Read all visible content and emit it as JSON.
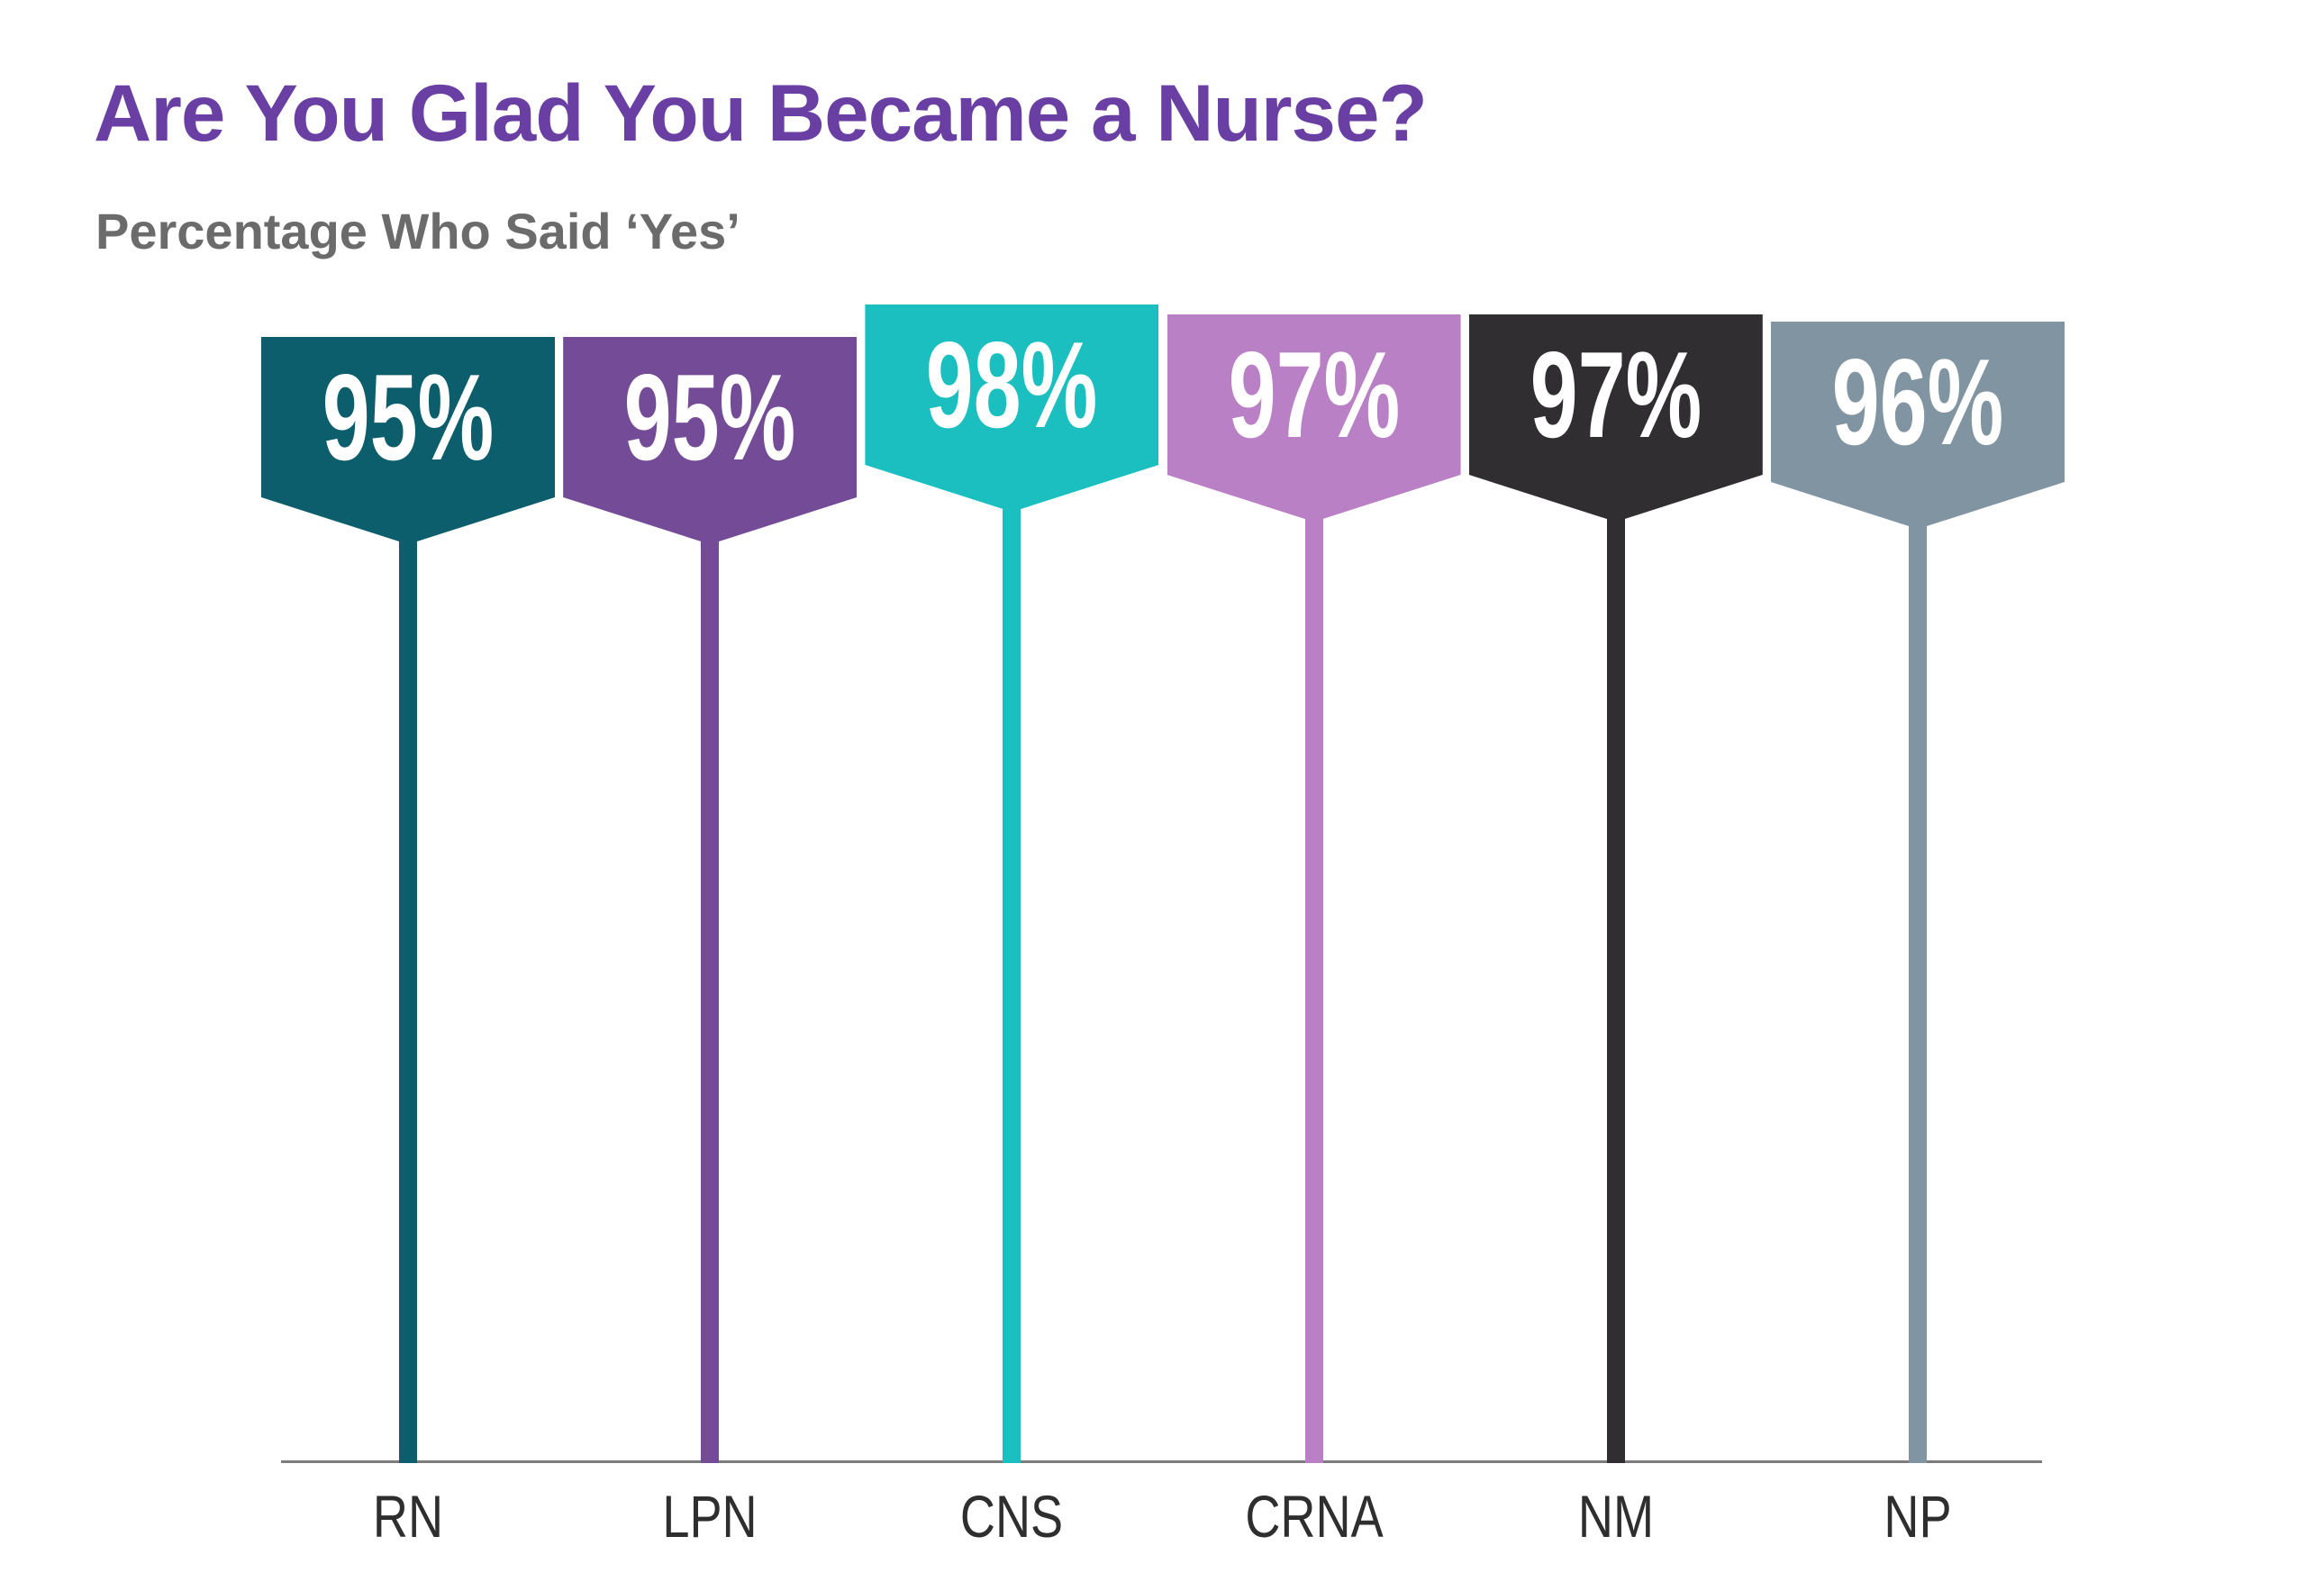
{
  "title": "Are You Glad You Became a Nurse?",
  "subtitle": "Percentage Who Said ‘Yes’",
  "colors": {
    "title_text": "#6A3FA4",
    "subtitle_text": "#6B6B6B",
    "value_text": "#FFFFFF",
    "category_text": "#2E2E2E",
    "axis_line": "#7C7C7C",
    "background": "#FFFFFF"
  },
  "chart_data": {
    "type": "bar",
    "variant": "lollipop-flag-markers",
    "title": "Are You Glad You Became a Nurse?",
    "subtitle": "Percentage Who Said ‘Yes’",
    "categories": [
      "RN",
      "LPN",
      "CNS",
      "CRNA",
      "NM",
      "NP"
    ],
    "values": [
      95,
      95,
      98,
      97,
      97,
      96
    ],
    "value_labels": [
      "95%",
      "95%",
      "98%",
      "97%",
      "97%",
      "96%"
    ],
    "series_colors": [
      "#0D5E6C",
      "#744B97",
      "#1BBFBF",
      "#BA80C6",
      "#312E31",
      "#8094A1"
    ],
    "xlabel": "",
    "ylabel": "",
    "ylim": [
      0,
      100
    ],
    "grid": false,
    "legend": false,
    "x_axis_line": true
  }
}
